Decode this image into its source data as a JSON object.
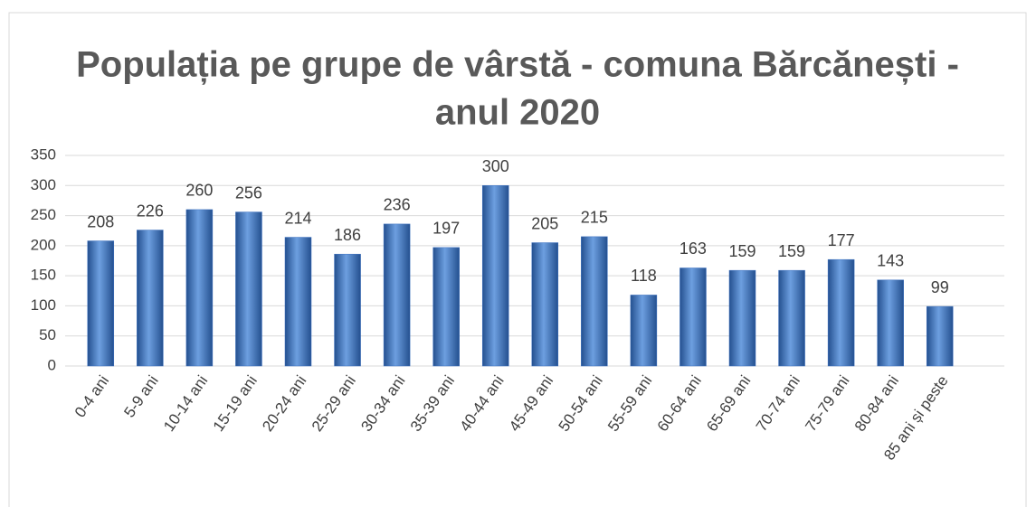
{
  "chart_data": {
    "type": "bar",
    "title": [
      "Populația pe grupe de vârstă - comuna Bărcănești -",
      "anul 2020"
    ],
    "categories": [
      "0-4 ani",
      "5-9 ani",
      "10-14 ani",
      "15-19 ani",
      "20-24 ani",
      "25-29 ani",
      "30-34 ani",
      "35-39 ani",
      "40-44 ani",
      "45-49 ani",
      "50-54 ani",
      "55-59 ani",
      "60-64 ani",
      "65-69 ani",
      "70-74 ani",
      "75-79 ani",
      "80-84 ani",
      "85 ani și peste"
    ],
    "values": [
      208,
      226,
      260,
      256,
      214,
      186,
      236,
      197,
      300,
      205,
      215,
      118,
      163,
      159,
      159,
      177,
      143,
      99
    ],
    "color": "#3a6fc0",
    "ylim": [
      0,
      350
    ],
    "yticks": [
      0,
      50,
      100,
      150,
      200,
      250,
      300,
      350
    ],
    "grid": true
  }
}
